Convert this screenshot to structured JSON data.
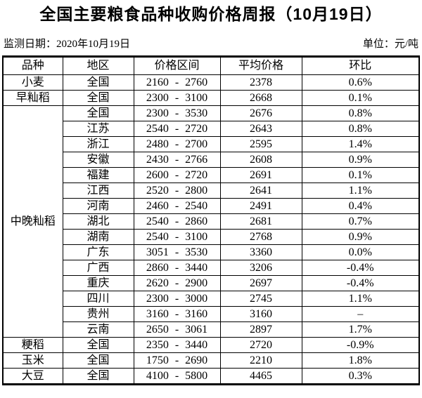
{
  "title": "全国主要粮食品种收购价格周报（10月19日）",
  "meta": {
    "monitor_date": "监测日期：2020年10月19日",
    "unit": "单位：元/吨"
  },
  "table": {
    "headers": [
      "品种",
      "地区",
      "价格区间",
      "平均价格",
      "环比"
    ],
    "groups": [
      {
        "variety": "小麦",
        "rows": [
          [
            "全国",
            "2160 - 2760",
            "2378",
            "0.6%"
          ]
        ]
      },
      {
        "variety": "早籼稻",
        "rows": [
          [
            "全国",
            "2300 - 3100",
            "2668",
            "0.1%"
          ]
        ]
      },
      {
        "variety": "中晚籼稻",
        "rows": [
          [
            "全国",
            "2300 - 3530",
            "2676",
            "0.8%"
          ],
          [
            "江苏",
            "2540 - 2720",
            "2643",
            "0.8%"
          ],
          [
            "浙江",
            "2480 - 2700",
            "2595",
            "1.4%"
          ],
          [
            "安徽",
            "2430 - 2766",
            "2608",
            "0.9%"
          ],
          [
            "福建",
            "2600 - 2720",
            "2691",
            "0.1%"
          ],
          [
            "江西",
            "2520 - 2800",
            "2641",
            "1.1%"
          ],
          [
            "河南",
            "2460 - 2540",
            "2491",
            "0.4%"
          ],
          [
            "湖北",
            "2540 - 2860",
            "2681",
            "0.7%"
          ],
          [
            "湖南",
            "2540 - 3100",
            "2768",
            "0.9%"
          ],
          [
            "广东",
            "3051 - 3530",
            "3360",
            "0.0%"
          ],
          [
            "广西",
            "2860 - 3440",
            "3206",
            "-0.4%"
          ],
          [
            "重庆",
            "2620 - 2900",
            "2697",
            "-0.4%"
          ],
          [
            "四川",
            "2300 - 3000",
            "2745",
            "1.1%"
          ],
          [
            "贵州",
            "3160 - 3160",
            "3160",
            "–"
          ],
          [
            "云南",
            "2650 - 3061",
            "2897",
            "1.7%"
          ]
        ]
      },
      {
        "variety": "粳稻",
        "rows": [
          [
            "全国",
            "2350 - 3440",
            "2720",
            "-0.9%"
          ]
        ]
      },
      {
        "variety": "玉米",
        "rows": [
          [
            "全国",
            "1750 - 2690",
            "2210",
            "1.8%"
          ]
        ]
      },
      {
        "variety": "大豆",
        "rows": [
          [
            "全国",
            "4100 - 5800",
            "4465",
            "0.3%"
          ]
        ]
      }
    ]
  }
}
